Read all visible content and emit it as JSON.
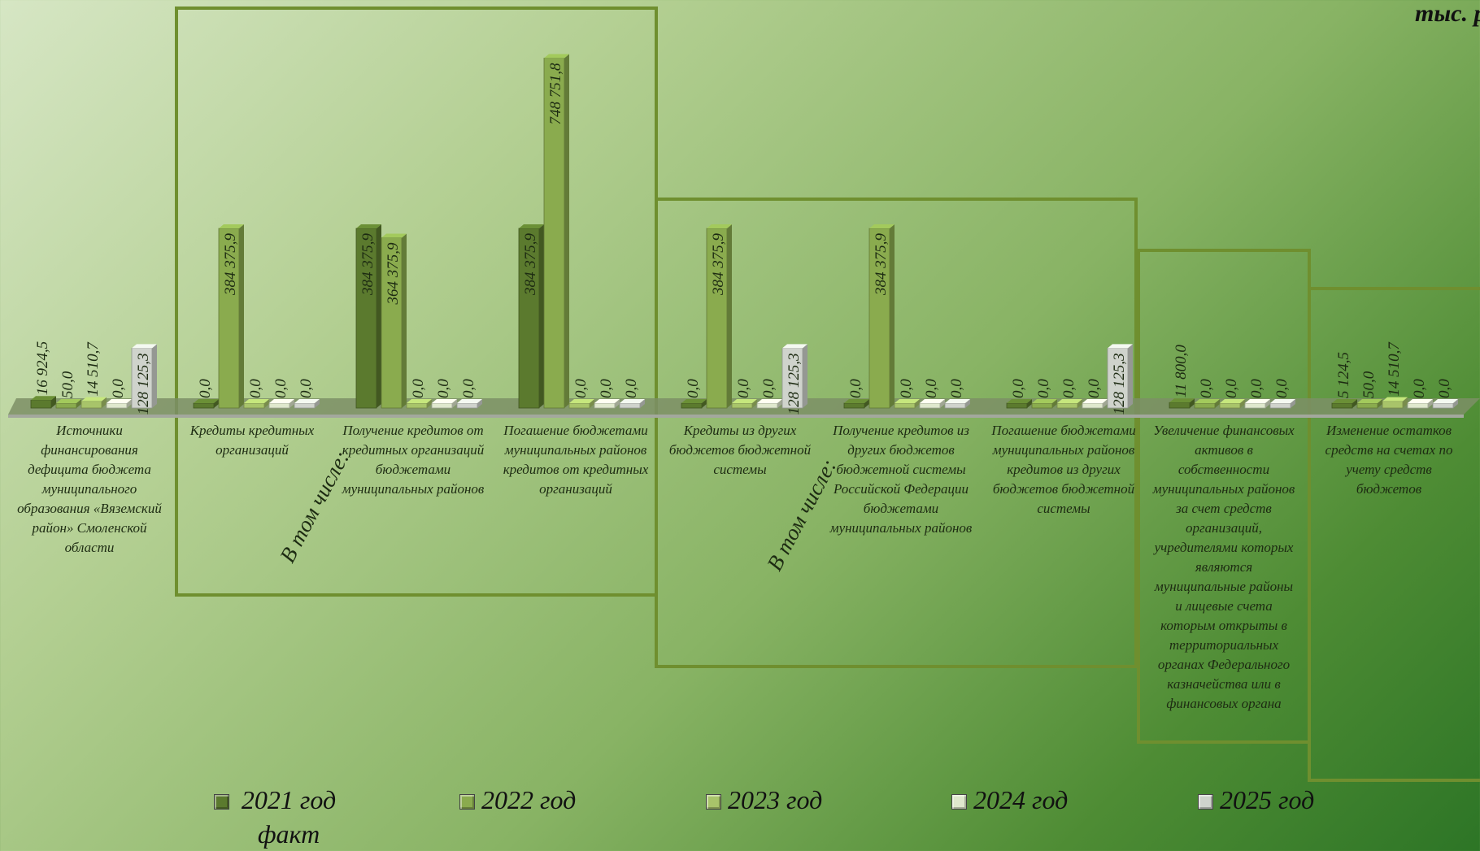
{
  "unit_label": "тыс. р",
  "in_total_label": "В том числе:",
  "colors": [
    "#5b7a2e",
    "#8aab4e",
    "#a8c46a",
    "#dfe8cd",
    "#cfd3cc"
  ],
  "chart_data": {
    "type": "bar",
    "title": "",
    "xlabel": "",
    "ylabel": "",
    "ylim": [
      0,
      800000
    ],
    "legend_position": "bottom",
    "categories": [
      "Источники финансирования дефицита бюджета муниципального образования «Вяземский район» Смоленской области",
      "Кредиты кредитных организаций",
      "Получение кредитов от кредитных организаций бюджетами муниципальных районов",
      "Погашение бюджетами муниципальных районов кредитов от кредитных организаций",
      "Кредиты из других бюджетов бюджетной системы",
      "Получение кредитов из других бюджетов бюджетной системы Российской Федерации бюджетами муниципальных районов",
      "Погашение бюджетами муниципальных районов кредитов из других бюджетов бюджетной системы",
      "Увеличение финансовых активов в собственности муниципальных районов за счет средств организаций, учредителями которых являются муниципальные районы и лицевые счета которым открыты в территориальных органах Федерального казначейства или в финансовых органа",
      "Изменение остатков средств на счетах по учету средств бюджетов"
    ],
    "series": [
      {
        "name": "2021 год факт",
        "values": [
          16924.5,
          0.0,
          384375.9,
          384375.9,
          0.0,
          0.0,
          0.0,
          11800.0,
          5124.5
        ],
        "labels": [
          "16 924,5",
          "0,0",
          "384 375,9",
          "384 375,9",
          "0,0",
          "0,0",
          "0,0",
          "11 800,0",
          "5 124,5"
        ]
      },
      {
        "name": "2022 год",
        "values": [
          50.0,
          384375.9,
          364375.9,
          748751.8,
          384375.9,
          384375.9,
          0.0,
          0.0,
          50.0
        ],
        "labels": [
          "50,0",
          "384 375,9",
          "364 375,9",
          "748 751,8",
          "384 375,9",
          "384 375,9",
          "0,0",
          "0,0",
          "50,0"
        ]
      },
      {
        "name": "2023 год",
        "values": [
          14510.7,
          0.0,
          0.0,
          0.0,
          0.0,
          0.0,
          0.0,
          0.0,
          14510.7
        ],
        "labels": [
          "14 510,7",
          "0,0",
          "0,0",
          "0,0",
          "0,0",
          "0,0",
          "0,0",
          "0,0",
          "14 510,7"
        ]
      },
      {
        "name": "2024 год",
        "values": [
          0.0,
          0.0,
          0.0,
          0.0,
          0.0,
          0.0,
          0.0,
          0.0,
          0.0
        ],
        "labels": [
          "0,0",
          "0,0",
          "0,0",
          "0,0",
          "0,0",
          "0,0",
          "0,0",
          "0,0",
          "0,0"
        ]
      },
      {
        "name": "2025 год",
        "values": [
          128125.3,
          0.0,
          0.0,
          0.0,
          128125.3,
          0.0,
          128125.3,
          0.0,
          0.0
        ],
        "labels": [
          "128 125,3",
          "0,0",
          "0,0",
          "0,0",
          "128 125,3",
          "0,0",
          "128 125,3",
          "0,0",
          "0,0"
        ]
      }
    ]
  }
}
